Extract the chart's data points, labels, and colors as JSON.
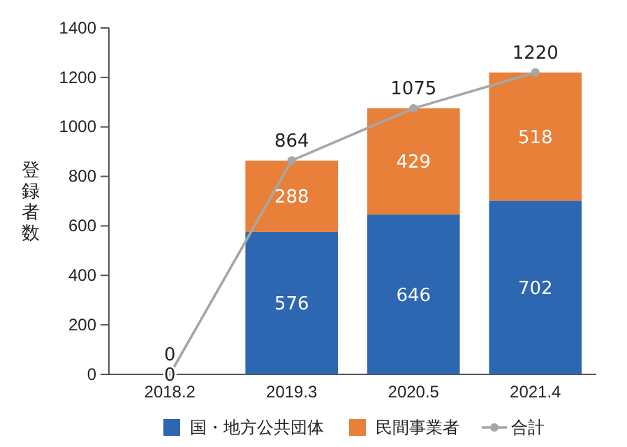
{
  "chart_data": {
    "type": "bar",
    "stacked": true,
    "ylabel": "登録者数",
    "categories": [
      "2018.2",
      "2019.3",
      "2020.5",
      "2021.4"
    ],
    "series": [
      {
        "name": "国・地方公共団体",
        "color": "#2e67b1",
        "values": [
          0,
          576,
          646,
          702
        ],
        "value_labels": [
          "0",
          "576",
          "646",
          "702"
        ]
      },
      {
        "name": "民間事業者",
        "color": "#e8803a",
        "values": [
          0,
          288,
          429,
          518
        ],
        "value_labels": [
          null,
          "288",
          "429",
          "518"
        ]
      },
      {
        "name": "合計",
        "type": "line",
        "color": "#a6a6a6",
        "marker": "circle",
        "values": [
          0,
          864,
          1075,
          1220
        ],
        "value_labels": [
          "0",
          "864",
          "1075",
          "1220"
        ]
      }
    ],
    "ylim": [
      0,
      1400
    ],
    "yticks": [
      0,
      200,
      400,
      600,
      800,
      1000,
      1200,
      1400
    ],
    "grid": false,
    "legend": "bottom"
  }
}
